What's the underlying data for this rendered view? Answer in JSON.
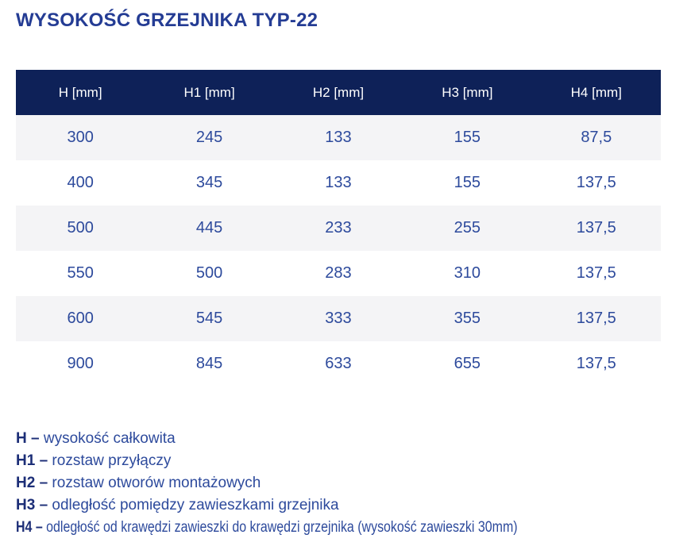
{
  "title": "WYSOKOŚĆ GRZEJNIKA TYP-22",
  "colors": {
    "title_text": "#243c94",
    "table_header_bg": "#0e2158",
    "table_header_text": "#ffffff",
    "cell_text": "#2d4a9c",
    "row_alt_bg": "#f4f4f6",
    "row_bg": "#ffffff",
    "legend_term_text": "#1c2e77",
    "legend_text": "#2d4a9c"
  },
  "table": {
    "headers": [
      "H [mm]",
      "H1 [mm]",
      "H2 [mm]",
      "H3 [mm]",
      "H4 [mm]"
    ],
    "rows": [
      [
        "300",
        "245",
        "133",
        "155",
        "87,5"
      ],
      [
        "400",
        "345",
        "133",
        "155",
        "137,5"
      ],
      [
        "500",
        "445",
        "233",
        "255",
        "137,5"
      ],
      [
        "550",
        "500",
        "283",
        "310",
        "137,5"
      ],
      [
        "600",
        "545",
        "333",
        "355",
        "137,5"
      ],
      [
        "900",
        "845",
        "633",
        "655",
        "137,5"
      ]
    ]
  },
  "legend": [
    {
      "term": "H –",
      "definition": "wysokość całkowita"
    },
    {
      "term": "H1 –",
      "definition": "rozstaw przyłączy"
    },
    {
      "term": "H2 –",
      "definition": "rozstaw otworów montażowych"
    },
    {
      "term": "H3 –",
      "definition": "odległość pomiędzy zawieszkami grzejnika"
    },
    {
      "term": "H4 –",
      "definition": "odległość od krawędzi zawieszki do krawędzi grzejnika (wysokość zawieszki 30mm)"
    }
  ]
}
